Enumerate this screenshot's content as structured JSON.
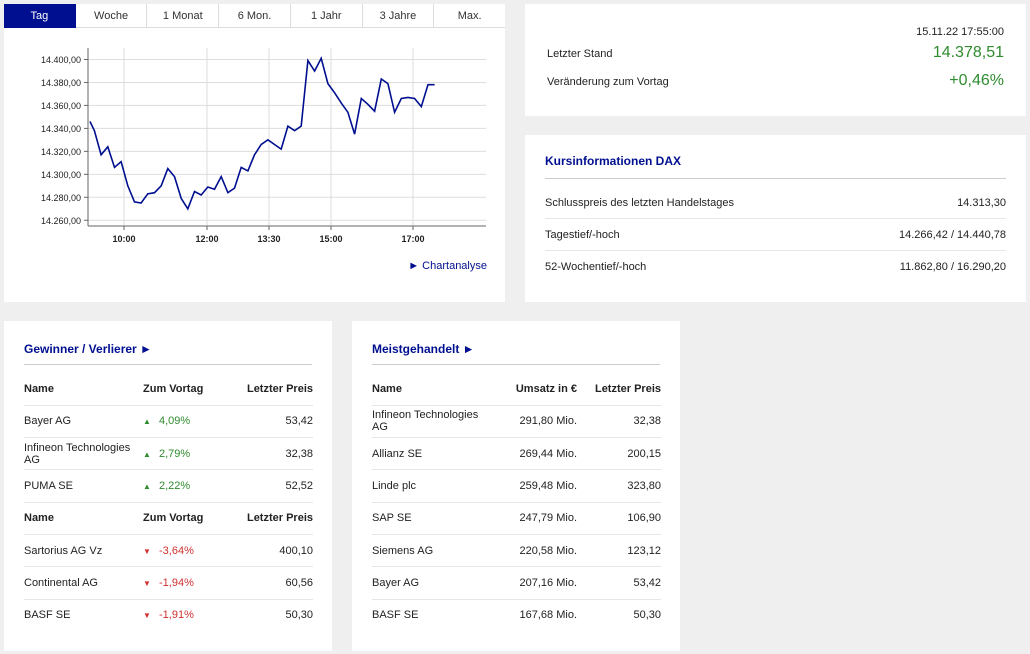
{
  "tabs": [
    "Tag",
    "Woche",
    "1 Monat",
    "6 Mon.",
    "1 Jahr",
    "3 Jahre",
    "Max."
  ],
  "active_tab": 0,
  "chart_link": "► Chartanalyse",
  "colors": {
    "accent": "#000f8f",
    "up": "#2e8b2e",
    "down": "#d03030"
  },
  "chart_data": {
    "type": "line",
    "x_ticks": [
      "10:00",
      "12:00",
      "13:30",
      "15:00",
      "17:00"
    ],
    "y_ticks": [
      "14.400,00",
      "14.380,00",
      "14.360,00",
      "14.340,00",
      "14.320,00",
      "14.300,00",
      "14.280,00",
      "14.260,00"
    ],
    "ylim": [
      14255,
      14410
    ],
    "grid": true,
    "x": [
      0,
      4,
      10,
      16,
      22,
      28,
      34,
      40,
      46,
      52,
      58,
      64,
      70,
      76,
      82,
      88,
      94,
      100,
      106,
      112,
      118,
      124,
      130,
      136,
      142,
      148,
      154,
      160,
      166,
      172,
      178,
      184,
      190,
      196,
      202,
      208,
      214,
      220,
      226,
      232,
      238,
      244,
      250,
      256,
      262,
      268,
      274,
      280,
      286,
      292,
      298,
      304,
      310,
      316,
      322,
      328,
      334,
      340,
      346,
      352,
      358
    ],
    "values": [
      14346,
      14338,
      14317,
      14324,
      14306,
      14311,
      14290,
      14276,
      14275,
      14283,
      14284,
      14290,
      14305,
      14298,
      14279,
      14270,
      14285,
      14282,
      14289,
      14287,
      14298,
      14284,
      14288,
      14306,
      14303,
      14317,
      14326,
      14330,
      14326,
      14322,
      14342,
      14338,
      14342,
      14399,
      14390,
      14401,
      14379,
      14371,
      14362,
      14354,
      14335,
      14366,
      14361,
      14355,
      14383,
      14379,
      14354,
      14366,
      14367,
      14366,
      14359,
      14378,
      14378,
      14378,
      14378,
      14378,
      14378,
      14378,
      14378,
      14378,
      14378
    ],
    "last_index": 52
  },
  "stand": {
    "timestamp": "15.11.22 17:55:00",
    "last_label": "Letzter Stand",
    "last_value": "14.378,51",
    "change_label": "Veränderung zum Vortag",
    "change_value": "+0,46%"
  },
  "kurs": {
    "title": "Kursinformationen DAX",
    "rows": [
      {
        "label": "Schlusspreis des letzten Handelstages",
        "value": "14.313,30"
      },
      {
        "label": "Tagestief/-hoch",
        "value": "14.266,42 / 14.440,78"
      },
      {
        "label": "52-Wochentief/-hoch",
        "value": "11.862,80 / 16.290,20"
      }
    ]
  },
  "gewinner": {
    "title": "Gewinner / Verlierer ►",
    "headers": [
      "Name",
      "Zum Vortag",
      "Letzter Preis"
    ],
    "winners": [
      {
        "name": "Bayer AG",
        "change": "4,09%",
        "price": "53,42"
      },
      {
        "name": "Infineon Technologies AG",
        "change": "2,79%",
        "price": "32,38"
      },
      {
        "name": "PUMA SE",
        "change": "2,22%",
        "price": "52,52"
      }
    ],
    "losers": [
      {
        "name": "Sartorius AG Vz",
        "change": "-3,64%",
        "price": "400,10"
      },
      {
        "name": "Continental AG",
        "change": "-1,94%",
        "price": "60,56"
      },
      {
        "name": "BASF SE",
        "change": "-1,91%",
        "price": "50,30"
      }
    ]
  },
  "meist": {
    "title": "Meistgehandelt ►",
    "headers": [
      "Name",
      "Umsatz in €",
      "Letzter Preis"
    ],
    "rows": [
      {
        "name": "Infineon Technologies AG",
        "umsatz": "291,80 Mio.",
        "price": "32,38"
      },
      {
        "name": "Allianz SE",
        "umsatz": "269,44 Mio.",
        "price": "200,15"
      },
      {
        "name": "Linde plc",
        "umsatz": "259,48 Mio.",
        "price": "323,80"
      },
      {
        "name": "SAP SE",
        "umsatz": "247,79 Mio.",
        "price": "106,90"
      },
      {
        "name": "Siemens AG",
        "umsatz": "220,58 Mio.",
        "price": "123,12"
      },
      {
        "name": "Bayer AG",
        "umsatz": "207,16 Mio.",
        "price": "53,42"
      },
      {
        "name": "BASF SE",
        "umsatz": "167,68 Mio.",
        "price": "50,30"
      }
    ]
  }
}
